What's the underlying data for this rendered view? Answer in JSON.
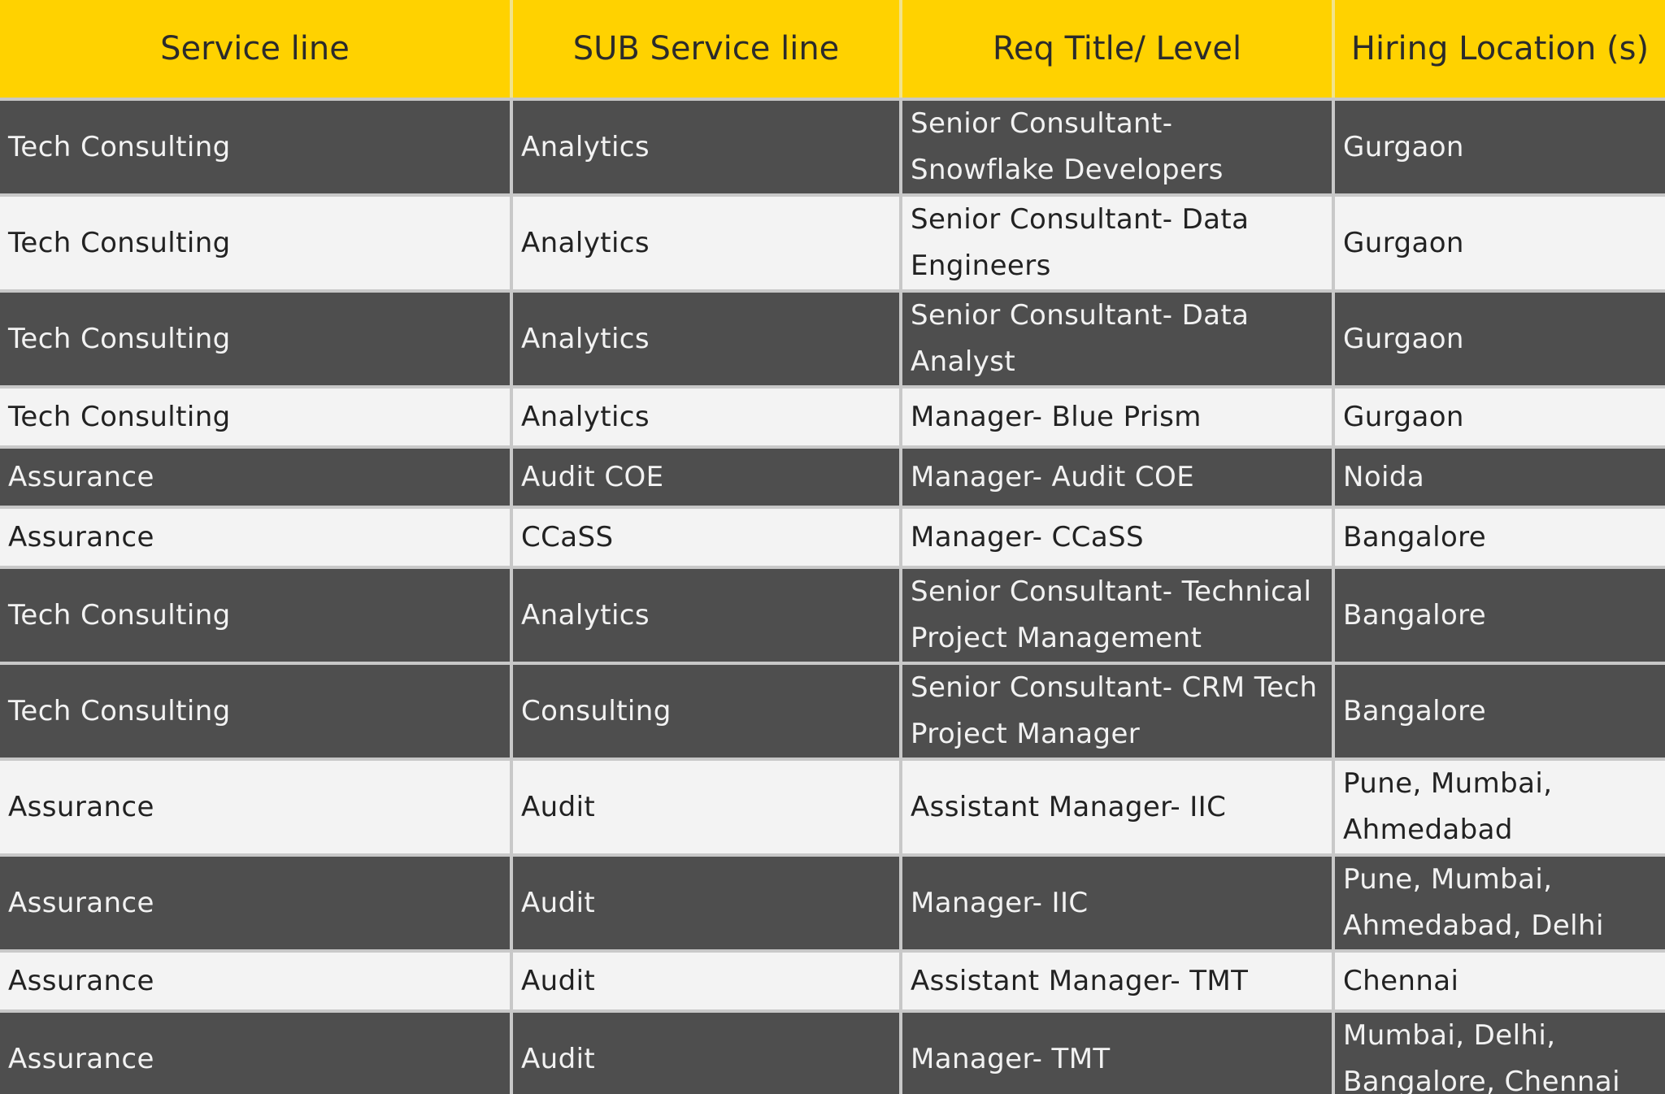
{
  "headers": [
    "Service line",
    "SUB Service line",
    "Req Title/ Level",
    "Hiring Location (s)"
  ],
  "rows": [
    [
      "Tech Consulting",
      "Analytics",
      "Senior Consultant- Snowflake Developers",
      "Gurgaon"
    ],
    [
      "Tech Consulting",
      "Analytics",
      "Senior Consultant- Data Engineers",
      "Gurgaon"
    ],
    [
      "Tech Consulting",
      "Analytics",
      "Senior Consultant- Data Analyst",
      "Gurgaon"
    ],
    [
      "Tech Consulting",
      "Analytics",
      "Manager- Blue Prism",
      "Gurgaon"
    ],
    [
      "Assurance",
      "Audit COE",
      "Manager- Audit COE",
      "Noida"
    ],
    [
      "Assurance",
      "CCaSS",
      "Manager- CCaSS",
      "Bangalore"
    ],
    [
      "Tech Consulting",
      "Analytics",
      "Senior Consultant- Technical Project Management",
      "Bangalore"
    ],
    [
      "Tech Consulting",
      "Consulting",
      "Senior Consultant- CRM Tech Project Manager",
      "Bangalore"
    ],
    [
      "Assurance",
      "Audit",
      "Assistant Manager- IIC",
      "Pune, Mumbai, Ahmedabad"
    ],
    [
      "Assurance",
      "Audit",
      "Manager- IIC",
      "Pune, Mumbai, Ahmedabad, Delhi"
    ],
    [
      "Assurance",
      "Audit",
      "Assistant Manager- TMT",
      "Chennai"
    ],
    [
      "Assurance",
      "Audit",
      "Manager- TMT",
      "Mumbai, Delhi, Bangalore, Chennai"
    ]
  ],
  "colors": {
    "header_bg": "#ffd200",
    "header_text": "#2b2b2b",
    "dark_row_bg": "#4e4e4e",
    "dark_row_text": "#f2f2f2",
    "light_row_bg": "#f3f3f3",
    "light_row_text": "#222222",
    "border": "#c8c8c8"
  }
}
